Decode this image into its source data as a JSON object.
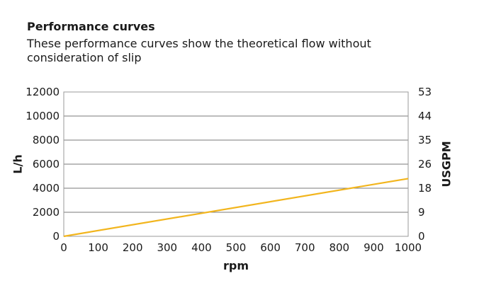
{
  "title": "Performance curves",
  "subtitle": "These performance curves show the theoretical flow without consideration of slip",
  "chart_data": {
    "type": "line",
    "xlabel": "rpm",
    "ylabel": "L/h",
    "y2label": "USGPM",
    "xlim": [
      0,
      1000
    ],
    "ylim": [
      0,
      12000
    ],
    "x_ticks": [
      "0",
      "100",
      "200",
      "300",
      "400",
      "500",
      "600",
      "700",
      "800",
      "900",
      "1000"
    ],
    "y_ticks": [
      "0",
      "2000",
      "4000",
      "6000",
      "8000",
      "10000",
      "12000"
    ],
    "y2_ticks": [
      "0",
      "9",
      "18",
      "26",
      "35",
      "44",
      "53"
    ],
    "grid": "horizontal",
    "series": [
      {
        "x": [
          0,
          1000
        ],
        "y": [
          0,
          4800
        ],
        "color": "#f2b51d"
      }
    ]
  }
}
